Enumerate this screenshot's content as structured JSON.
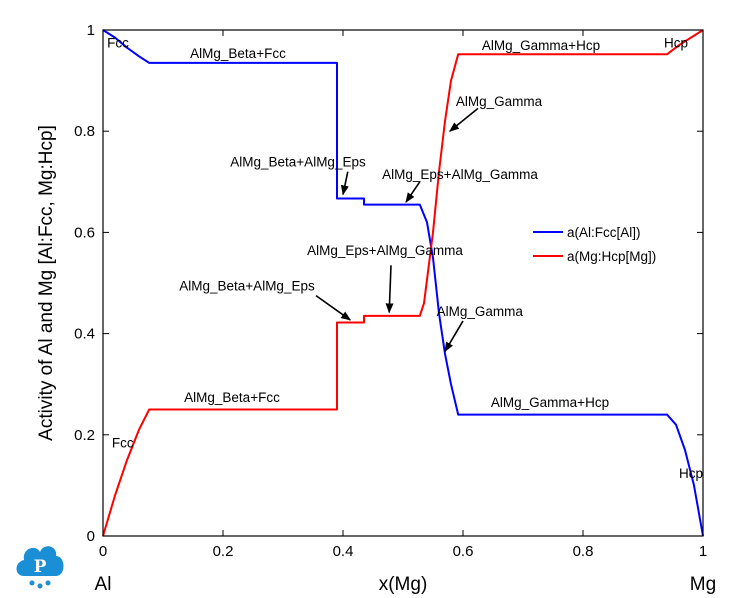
{
  "chart_data": {
    "type": "line",
    "xlabel": "x(Mg)",
    "ylabel": "Activity of Al and Mg [Al:Fcc, Mg:Hcp]",
    "xlim": [
      0,
      1
    ],
    "ylim": [
      0,
      1
    ],
    "x_ticks": [
      "0",
      "0.2",
      "0.4",
      "0.6",
      "0.8",
      "1"
    ],
    "y_ticks": [
      "0",
      "0.2",
      "0.4",
      "0.6",
      "0.8",
      "1"
    ],
    "x_end_labels": {
      "left": "Al",
      "right": "Mg"
    },
    "legend": {
      "placement": "right-center"
    },
    "series": [
      {
        "name": "a(Al:Fcc[Al])",
        "color": "#0000ff",
        "points": [
          [
            0,
            1
          ],
          [
            0.02,
            0.985
          ],
          [
            0.04,
            0.965
          ],
          [
            0.06,
            0.948
          ],
          [
            0.077,
            0.935
          ],
          [
            0.39,
            0.935
          ],
          [
            0.39,
            0.667
          ],
          [
            0.435,
            0.667
          ],
          [
            0.435,
            0.655
          ],
          [
            0.528,
            0.655
          ],
          [
            0.54,
            0.62
          ],
          [
            0.55,
            0.55
          ],
          [
            0.56,
            0.44
          ],
          [
            0.57,
            0.36
          ],
          [
            0.58,
            0.3
          ],
          [
            0.592,
            0.24
          ],
          [
            0.94,
            0.24
          ],
          [
            0.955,
            0.22
          ],
          [
            0.97,
            0.17
          ],
          [
            0.985,
            0.1
          ],
          [
            1.0,
            0.0
          ]
        ]
      },
      {
        "name": "a(Mg:Hcp[Mg])",
        "color": "#ff0000",
        "points": [
          [
            0,
            0
          ],
          [
            0.02,
            0.08
          ],
          [
            0.04,
            0.15
          ],
          [
            0.06,
            0.21
          ],
          [
            0.077,
            0.25
          ],
          [
            0.39,
            0.25
          ],
          [
            0.39,
            0.422
          ],
          [
            0.435,
            0.422
          ],
          [
            0.435,
            0.435
          ],
          [
            0.528,
            0.435
          ],
          [
            0.535,
            0.46
          ],
          [
            0.55,
            0.6
          ],
          [
            0.56,
            0.72
          ],
          [
            0.57,
            0.82
          ],
          [
            0.58,
            0.9
          ],
          [
            0.592,
            0.952
          ],
          [
            0.94,
            0.952
          ],
          [
            0.96,
            0.97
          ],
          [
            0.98,
            0.985
          ],
          [
            1.0,
            1.0
          ]
        ]
      }
    ],
    "annotations": [
      {
        "text": "Fcc",
        "x": 0.025,
        "y": 0.975
      },
      {
        "text": "AlMg_Beta+Fcc",
        "x": 0.225,
        "y": 0.955
      },
      {
        "text": "AlMg_Gamma+Hcp",
        "x": 0.73,
        "y": 0.97
      },
      {
        "text": "Hcp",
        "x": 0.955,
        "y": 0.975
      },
      {
        "text": "AlMg_Gamma",
        "x": 0.66,
        "y": 0.86
      },
      {
        "text": "AlMg_Beta+AlMg_Eps",
        "x": 0.325,
        "y": 0.74
      },
      {
        "text": "AlMg_Eps+AlMg_Gamma",
        "x": 0.595,
        "y": 0.715
      },
      {
        "text": "AlMg_Eps+AlMg_Gamma",
        "x": 0.47,
        "y": 0.565
      },
      {
        "text": "AlMg_Beta+AlMg_Eps",
        "x": 0.24,
        "y": 0.495
      },
      {
        "text": "AlMg_Gamma",
        "x": 0.628,
        "y": 0.445
      },
      {
        "text": "AlMg_Beta+Fcc",
        "x": 0.215,
        "y": 0.275
      },
      {
        "text": "AlMg_Gamma+Hcp",
        "x": 0.745,
        "y": 0.265
      },
      {
        "text": "Fcc",
        "x": 0.033,
        "y": 0.185
      },
      {
        "text": "Hcp",
        "x": 0.98,
        "y": 0.125
      }
    ],
    "arrows": [
      {
        "from": [
          0.625,
          0.845
        ],
        "to": [
          0.578,
          0.8
        ]
      },
      {
        "from": [
          0.408,
          0.72
        ],
        "to": [
          0.4,
          0.675
        ]
      },
      {
        "from": [
          0.528,
          0.7
        ],
        "to": [
          0.505,
          0.66
        ]
      },
      {
        "from": [
          0.48,
          0.535
        ],
        "to": [
          0.477,
          0.442
        ]
      },
      {
        "from": [
          0.355,
          0.475
        ],
        "to": [
          0.412,
          0.427
        ]
      },
      {
        "from": [
          0.6,
          0.425
        ],
        "to": [
          0.57,
          0.365
        ]
      }
    ]
  },
  "logo": {
    "letter": "P",
    "color": "#1a8fd6"
  }
}
